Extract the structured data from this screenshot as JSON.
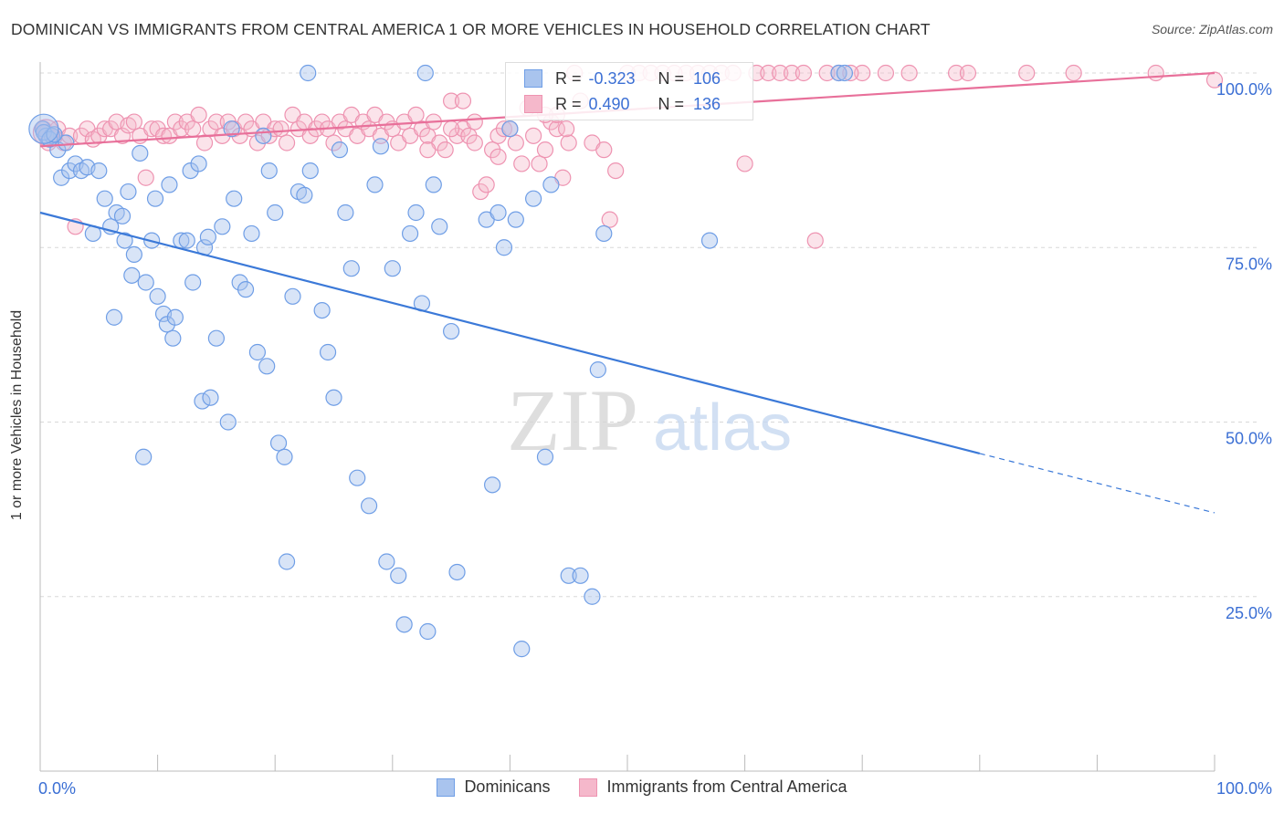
{
  "title": "DOMINICAN VS IMMIGRANTS FROM CENTRAL AMERICA 1 OR MORE VEHICLES IN HOUSEHOLD CORRELATION CHART",
  "source": "Source: ZipAtlas.com",
  "watermark": {
    "zip": "ZIP",
    "atlas": "atlas"
  },
  "colors": {
    "blue": "#3b79d8",
    "blue_fill": "#a9c4ee",
    "pink": "#e8709a",
    "pink_fill": "#f5b8cb",
    "axis_text": "#3b6fd4",
    "grid": "#d8d8d8"
  },
  "legend": {
    "rows": [
      {
        "r_label": "R =",
        "r_value": "-0.323",
        "n_label": "N =",
        "n_value": "106"
      },
      {
        "r_label": "R =",
        "r_value": "0.490",
        "n_label": "N =",
        "n_value": "136"
      }
    ]
  },
  "bottom_legend": [
    "Dominicans",
    "Immigrants from Central America"
  ],
  "chart_data": {
    "type": "scatter",
    "xlabel": "",
    "ylabel": "1 or more Vehicles in Household",
    "xlim": [
      0,
      100
    ],
    "ylim": [
      0,
      100
    ],
    "x_tick_labels": [
      {
        "value": 0,
        "label": "0.0%"
      },
      {
        "value": 100,
        "label": "100.0%"
      }
    ],
    "y_tick_labels": [
      {
        "value": 25,
        "label": "25.0%"
      },
      {
        "value": 50,
        "label": "50.0%"
      },
      {
        "value": 75,
        "label": "75.0%"
      },
      {
        "value": 100,
        "label": "100.0%"
      }
    ],
    "grid": true,
    "series": [
      {
        "name": "Dominicans",
        "color": "#3b79d8",
        "trend": {
          "x0": 0,
          "y0": 80,
          "x1": 80,
          "y1": 45.5,
          "dash_to_x": 100,
          "dash_to_y": 37
        },
        "points": [
          [
            0.2,
            92
          ],
          [
            0.5,
            91
          ],
          [
            1,
            91
          ],
          [
            1.5,
            89
          ],
          [
            1.8,
            85
          ],
          [
            2.2,
            90
          ],
          [
            2.5,
            86
          ],
          [
            3,
            87
          ],
          [
            3.5,
            86
          ],
          [
            4,
            86.5
          ],
          [
            4.5,
            77
          ],
          [
            5,
            86
          ],
          [
            5.5,
            82
          ],
          [
            6,
            78
          ],
          [
            6.3,
            65
          ],
          [
            6.5,
            80
          ],
          [
            7,
            79.5
          ],
          [
            7.2,
            76
          ],
          [
            7.5,
            83
          ],
          [
            7.8,
            71
          ],
          [
            8,
            74
          ],
          [
            8.5,
            88.5
          ],
          [
            8.8,
            45
          ],
          [
            9,
            70
          ],
          [
            9.5,
            76
          ],
          [
            9.8,
            82
          ],
          [
            10,
            68
          ],
          [
            10.5,
            65.5
          ],
          [
            10.8,
            64
          ],
          [
            11,
            84
          ],
          [
            11.3,
            62
          ],
          [
            11.5,
            65
          ],
          [
            12,
            76
          ],
          [
            12.5,
            76
          ],
          [
            12.8,
            86
          ],
          [
            13,
            70
          ],
          [
            13.5,
            87
          ],
          [
            13.8,
            53
          ],
          [
            14,
            75
          ],
          [
            14.3,
            76.5
          ],
          [
            14.5,
            53.5
          ],
          [
            15,
            62
          ],
          [
            15.5,
            78
          ],
          [
            16,
            50
          ],
          [
            16.3,
            92
          ],
          [
            16.5,
            82
          ],
          [
            17,
            70
          ],
          [
            17.5,
            69
          ],
          [
            18,
            77
          ],
          [
            18.5,
            60
          ],
          [
            19,
            91
          ],
          [
            19.3,
            58
          ],
          [
            19.5,
            86
          ],
          [
            20,
            80
          ],
          [
            20.3,
            47
          ],
          [
            20.8,
            45
          ],
          [
            21,
            30
          ],
          [
            21.5,
            68
          ],
          [
            22,
            83
          ],
          [
            22.5,
            82.5
          ],
          [
            22.8,
            100
          ],
          [
            23,
            86
          ],
          [
            24,
            66
          ],
          [
            24.5,
            60
          ],
          [
            25,
            53.5
          ],
          [
            25.5,
            89
          ],
          [
            26,
            80
          ],
          [
            26.5,
            72
          ],
          [
            27,
            42
          ],
          [
            28,
            38
          ],
          [
            28.5,
            84
          ],
          [
            29,
            89.5
          ],
          [
            29.5,
            30
          ],
          [
            30,
            72
          ],
          [
            30.5,
            28
          ],
          [
            31,
            21
          ],
          [
            31.5,
            77
          ],
          [
            32,
            80
          ],
          [
            32.5,
            67
          ],
          [
            32.8,
            100
          ],
          [
            33,
            20
          ],
          [
            33.5,
            84
          ],
          [
            34,
            78
          ],
          [
            35,
            63
          ],
          [
            35.5,
            28.5
          ],
          [
            38,
            79
          ],
          [
            38.5,
            41
          ],
          [
            39,
            80
          ],
          [
            39.5,
            75
          ],
          [
            40,
            92
          ],
          [
            40.5,
            79
          ],
          [
            41,
            17.5
          ],
          [
            42,
            82
          ],
          [
            43,
            45
          ],
          [
            43.5,
            84
          ],
          [
            45,
            28
          ],
          [
            46,
            28
          ],
          [
            47,
            25
          ],
          [
            47.5,
            57.5
          ],
          [
            48,
            77
          ],
          [
            57,
            76
          ],
          [
            68,
            100
          ],
          [
            68.5,
            100
          ],
          [
            0.3,
            91.5
          ],
          [
            0.8,
            90.5
          ],
          [
            1.2,
            91.2
          ]
        ]
      },
      {
        "name": "Immigrants from Central America",
        "color": "#e8709a",
        "trend": {
          "x0": 0,
          "y0": 89.5,
          "x1": 100,
          "y1": 100
        },
        "points": [
          [
            0.3,
            92
          ],
          [
            0.7,
            90
          ],
          [
            1,
            91
          ],
          [
            1.5,
            92
          ],
          [
            2,
            90
          ],
          [
            2.5,
            91
          ],
          [
            3,
            78
          ],
          [
            3.5,
            91
          ],
          [
            4,
            92
          ],
          [
            4.5,
            90.5
          ],
          [
            5,
            91
          ],
          [
            5.5,
            92
          ],
          [
            6,
            92
          ],
          [
            6.5,
            93
          ],
          [
            7,
            91
          ],
          [
            7.5,
            92.5
          ],
          [
            8,
            93
          ],
          [
            8.5,
            91
          ],
          [
            9,
            85
          ],
          [
            9.5,
            92
          ],
          [
            10,
            92
          ],
          [
            10.5,
            91
          ],
          [
            11,
            91
          ],
          [
            11.5,
            93
          ],
          [
            12,
            92
          ],
          [
            12.5,
            93
          ],
          [
            13,
            92
          ],
          [
            13.5,
            94
          ],
          [
            14,
            90
          ],
          [
            14.5,
            92
          ],
          [
            15,
            93
          ],
          [
            15.5,
            91
          ],
          [
            16,
            93
          ],
          [
            16.5,
            92
          ],
          [
            17,
            91
          ],
          [
            17.5,
            93
          ],
          [
            18,
            92
          ],
          [
            18.5,
            90
          ],
          [
            19,
            93
          ],
          [
            19.5,
            91
          ],
          [
            20,
            92
          ],
          [
            20.5,
            92
          ],
          [
            21,
            90
          ],
          [
            21.5,
            94
          ],
          [
            22,
            92
          ],
          [
            22.5,
            93
          ],
          [
            23,
            91
          ],
          [
            23.5,
            92
          ],
          [
            24,
            93
          ],
          [
            24.5,
            92
          ],
          [
            25,
            90
          ],
          [
            25.5,
            93
          ],
          [
            26,
            92
          ],
          [
            26.5,
            94
          ],
          [
            27,
            91
          ],
          [
            27.5,
            93
          ],
          [
            28,
            92
          ],
          [
            28.5,
            94
          ],
          [
            29,
            91
          ],
          [
            29.5,
            93
          ],
          [
            30,
            92
          ],
          [
            30.5,
            90
          ],
          [
            31,
            93
          ],
          [
            31.5,
            91
          ],
          [
            32,
            94
          ],
          [
            32.5,
            92
          ],
          [
            33,
            91
          ],
          [
            33.5,
            93
          ],
          [
            34,
            90
          ],
          [
            34.5,
            89
          ],
          [
            35,
            96
          ],
          [
            35.5,
            91
          ],
          [
            36,
            92
          ],
          [
            36.5,
            91
          ],
          [
            37,
            90
          ],
          [
            37.5,
            83
          ],
          [
            38,
            84
          ],
          [
            38.5,
            89
          ],
          [
            39,
            91
          ],
          [
            39.5,
            92
          ],
          [
            40,
            92
          ],
          [
            40.5,
            90
          ],
          [
            41,
            87
          ],
          [
            41.5,
            95
          ],
          [
            42,
            91
          ],
          [
            42.5,
            87
          ],
          [
            43,
            89
          ],
          [
            43.5,
            93
          ],
          [
            44,
            92
          ],
          [
            44.5,
            85
          ],
          [
            45,
            90
          ],
          [
            45.5,
            100
          ],
          [
            46,
            96
          ],
          [
            47,
            90
          ],
          [
            48,
            89
          ],
          [
            48.5,
            79
          ],
          [
            49,
            86
          ],
          [
            50,
            100
          ],
          [
            51,
            100
          ],
          [
            52,
            100
          ],
          [
            55,
            100
          ],
          [
            56,
            100
          ],
          [
            57,
            100
          ],
          [
            58,
            100
          ],
          [
            59,
            100
          ],
          [
            60,
            87
          ],
          [
            61,
            100
          ],
          [
            62,
            100
          ],
          [
            63,
            100
          ],
          [
            64,
            100
          ],
          [
            65,
            100
          ],
          [
            66,
            76
          ],
          [
            67,
            100
          ],
          [
            70,
            100
          ],
          [
            72,
            100
          ],
          [
            74,
            100
          ],
          [
            78,
            100
          ],
          [
            79,
            100
          ],
          [
            84,
            100
          ],
          [
            88,
            100
          ],
          [
            95,
            100
          ],
          [
            100,
            99
          ],
          [
            53,
            100
          ],
          [
            54,
            100
          ],
          [
            68,
            100
          ],
          [
            69,
            100
          ],
          [
            0.5,
            91.5
          ],
          [
            1.2,
            90.8
          ],
          [
            36,
            96
          ],
          [
            44,
            94
          ],
          [
            33,
            89
          ],
          [
            35,
            92
          ],
          [
            37,
            93
          ],
          [
            39,
            88
          ],
          [
            43,
            94
          ],
          [
            44.8,
            92
          ]
        ]
      }
    ]
  }
}
